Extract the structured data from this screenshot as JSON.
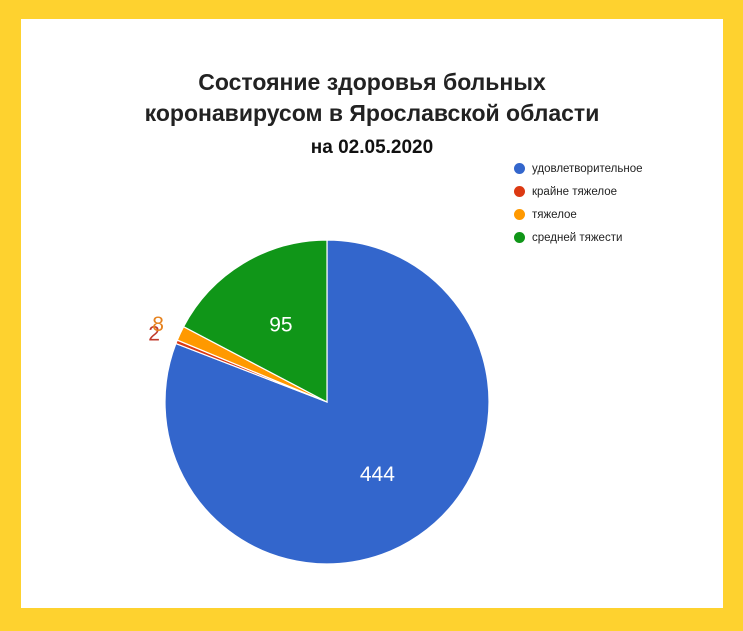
{
  "colors": {
    "background_frame": "#fed22f",
    "card": "#ffffff"
  },
  "chart_data": {
    "type": "pie",
    "title_lines": [
      "Состояние здоровья больных",
      "коронавирусом в Ярославской области"
    ],
    "subtitle": "на 02.05.2020",
    "slices": [
      {
        "name": "удовлетворительное",
        "value": 444,
        "label": "444",
        "color": "#3366cc",
        "label_color": "#ffffff"
      },
      {
        "name": "крайне тяжелое",
        "value": 2,
        "label": "2",
        "color": "#dc3912",
        "label_color": "#c0392b"
      },
      {
        "name": "тяжелое",
        "value": 8,
        "label": "8",
        "color": "#ff9900",
        "label_color": "#e6821e"
      },
      {
        "name": "средней тяжести",
        "value": 95,
        "label": "95",
        "color": "#109618",
        "label_color": "#ffffff"
      }
    ],
    "legend_position": "top-right",
    "start_direction": "clockwise-from-top"
  }
}
